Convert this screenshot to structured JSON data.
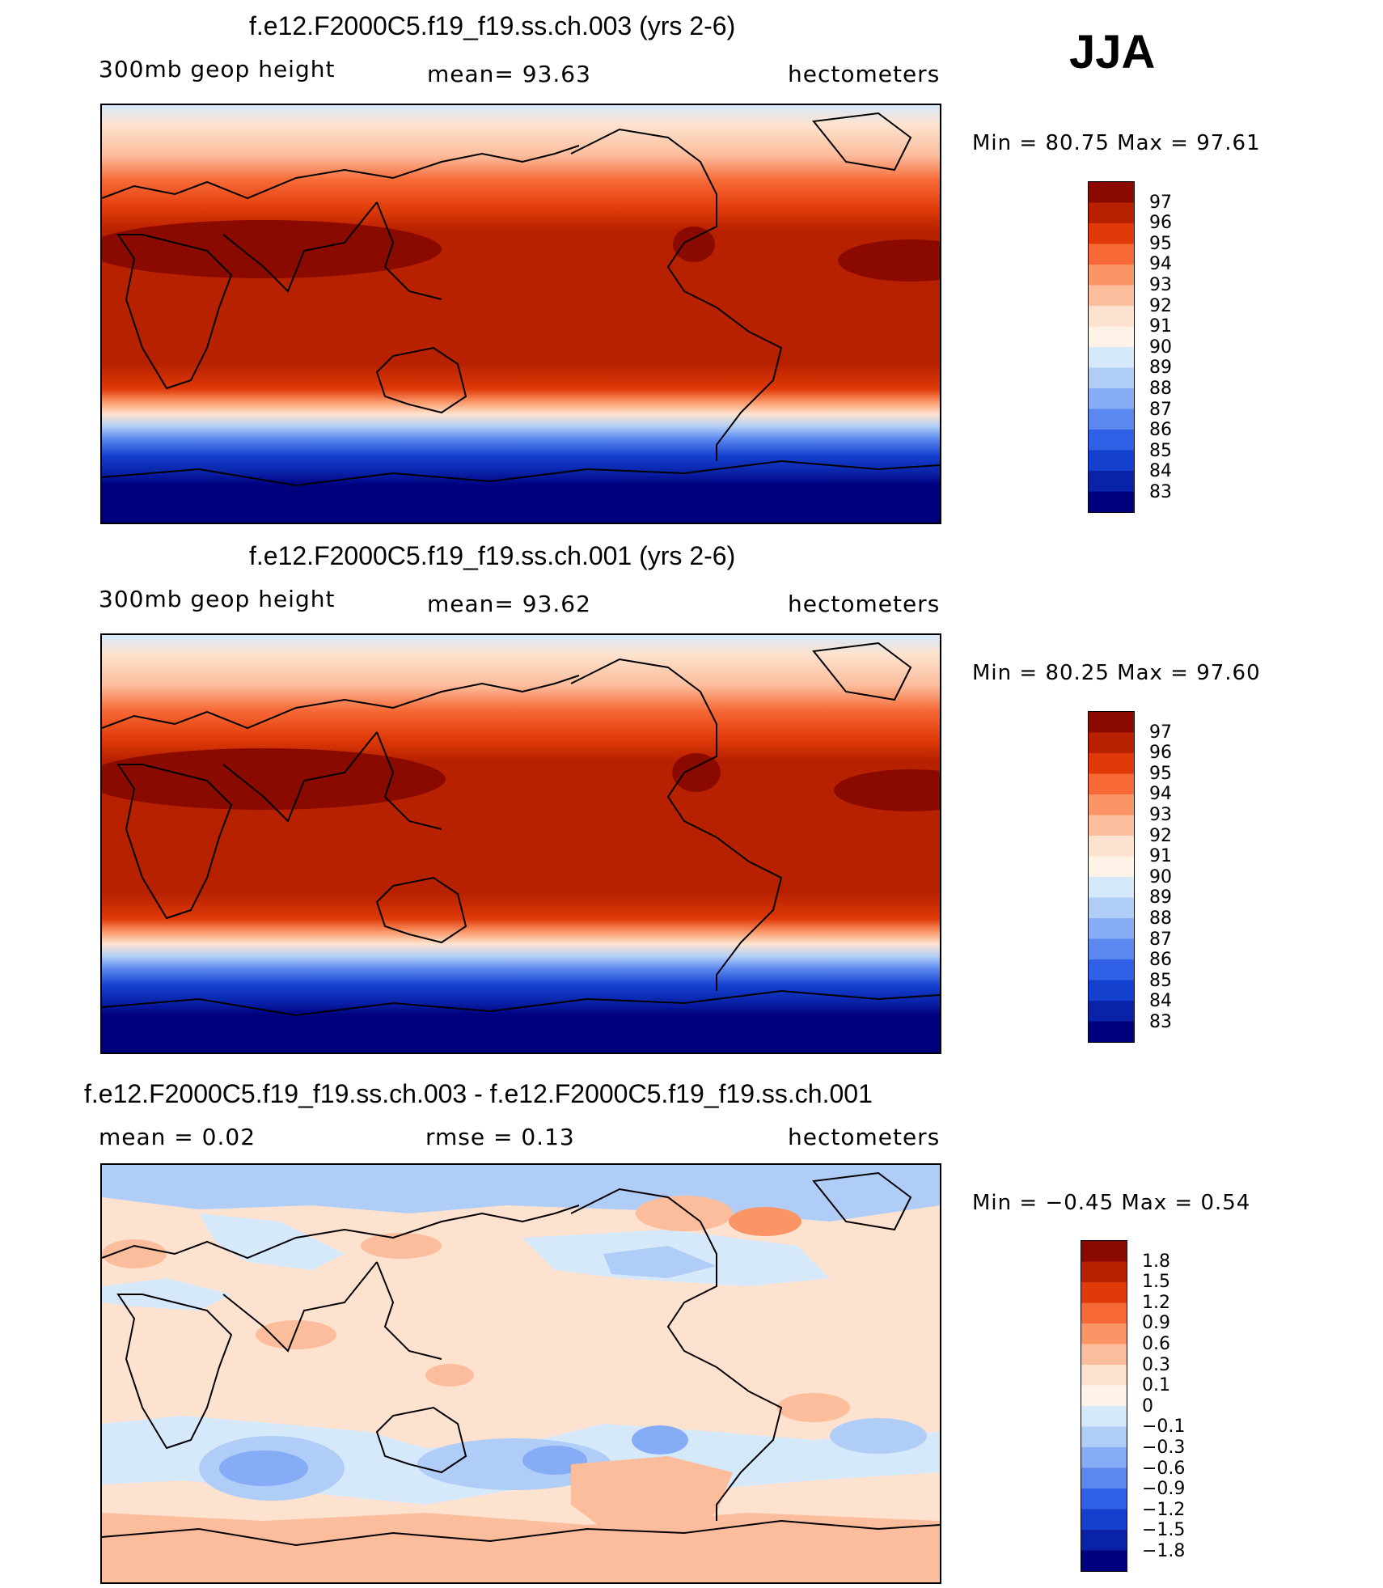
{
  "season": "JJA",
  "panels": [
    {
      "title": "f.e12.F2000C5.f19_f19.ss.ch.003 (yrs 2-6)",
      "left": "300mb  geop  height",
      "middle": "mean=   93.63",
      "right": "hectometers",
      "minmax": "Min  =    80.75  Max  =    97.61",
      "labels": [
        "97",
        "96",
        "95",
        "94",
        "93",
        "92",
        "91",
        "90",
        "89",
        "88",
        "87",
        "86",
        "85",
        "84",
        "83"
      ]
    },
    {
      "title": "f.e12.F2000C5.f19_f19.ss.ch.001 (yrs 2-6)",
      "left": "300mb  geop  height",
      "middle": "mean=   93.62",
      "right": "hectometers",
      "minmax": "Min  =    80.25  Max  =    97.60",
      "labels": [
        "97",
        "96",
        "95",
        "94",
        "93",
        "92",
        "91",
        "90",
        "89",
        "88",
        "87",
        "86",
        "85",
        "84",
        "83"
      ]
    },
    {
      "title": "f.e12.F2000C5.f19_f19.ss.ch.003 - f.e12.F2000C5.f19_f19.ss.ch.001",
      "left": "mean  =     0.02",
      "middle": "rmse  =     0.13",
      "right": "hectometers",
      "minmax": "Min  =    −0.45  Max  =      0.54",
      "labels": [
        "1.8",
        "1.5",
        "1.2",
        "0.9",
        "0.6",
        "0.3",
        "0.1",
        "0",
        "−0.1",
        "−0.3",
        "−0.6",
        "−0.9",
        "−1.2",
        "−1.5",
        "−1.8"
      ]
    }
  ],
  "colors": {
    "scale": [
      "#8b0a00",
      "#b82100",
      "#e03a08",
      "#f76a38",
      "#fb9566",
      "#fcbd9d",
      "#fde3cf",
      "#fff2e6",
      "#d6e9fb",
      "#b0cdf8",
      "#86acf5",
      "#5b88ef",
      "#3060e6",
      "#1440d0",
      "#0a22a8",
      "#00007f"
    ]
  }
}
